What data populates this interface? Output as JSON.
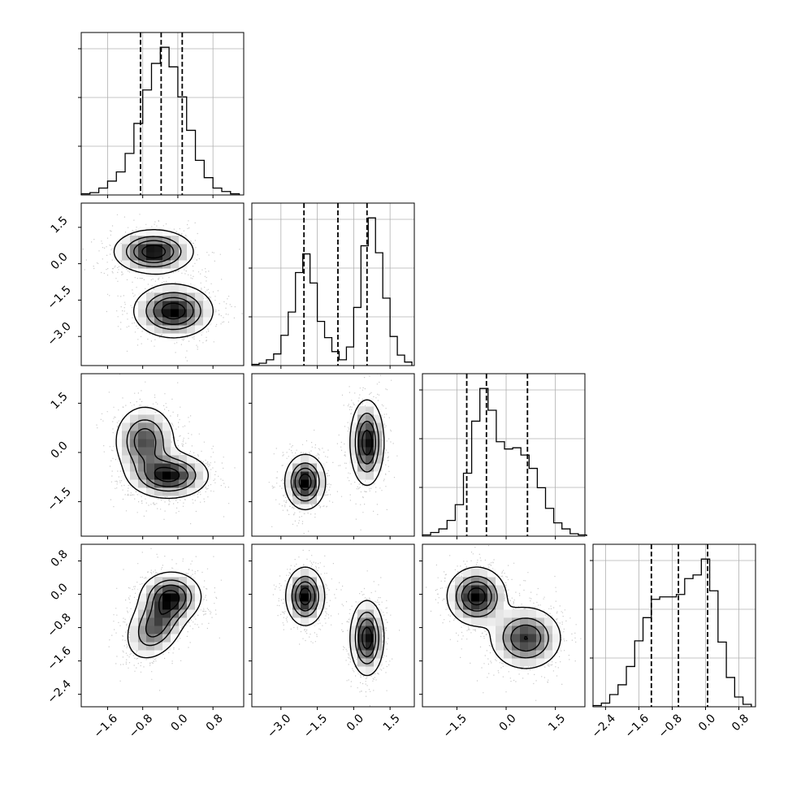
{
  "chart_data": {
    "type": "corner",
    "description_free": true,
    "parameters": 4,
    "grid": true,
    "quantile_style": "dashed",
    "axes": {
      "p0": {
        "range": [
          -2.2,
          1.5
        ],
        "ticks": [
          -1.6,
          -0.8,
          0.0,
          0.8
        ],
        "tick_labels": [
          "−1.6",
          "−0.8",
          "0.0",
          "0.8"
        ]
      },
      "p1": {
        "range": [
          -4.2,
          2.5
        ],
        "ticks": [
          -3.0,
          -1.5,
          0.0,
          1.5
        ],
        "tick_labels": [
          "−3.0",
          "−1.5",
          "0.0",
          "1.5"
        ]
      },
      "p2": {
        "range": [
          -2.55,
          2.4
        ],
        "ticks": [
          -1.5,
          0.0,
          1.5
        ],
        "tick_labels": [
          "−1.5",
          "0.0",
          "1.5"
        ]
      },
      "p3": {
        "range": [
          -2.7,
          1.2
        ],
        "ticks": [
          -2.4,
          -1.6,
          -0.8,
          0.0,
          0.8
        ],
        "tick_labels": [
          "−2.4",
          "−1.6",
          "−0.8",
          "0.0",
          "0.8"
        ]
      }
    },
    "histograms": [
      {
        "param": "p0",
        "bin_edges": [
          -2.2,
          -2.0,
          -1.8,
          -1.6,
          -1.4,
          -1.2,
          -1.0,
          -0.8,
          -0.6,
          -0.4,
          -0.2,
          0.0,
          0.2,
          0.4,
          0.6,
          0.8,
          1.0,
          1.2,
          1.4
        ],
        "counts": [
          1,
          2,
          6,
          12,
          20,
          36,
          62,
          91,
          114,
          128,
          111,
          85,
          56,
          30,
          15,
          6,
          3,
          1
        ],
        "quantiles": [
          -0.85,
          -0.38,
          0.1
        ]
      },
      {
        "param": "p1",
        "bin_edges": [
          -4.2,
          -3.9,
          -3.6,
          -3.3,
          -3.0,
          -2.7,
          -2.4,
          -2.1,
          -1.8,
          -1.5,
          -1.2,
          -0.9,
          -0.6,
          -0.3,
          0.0,
          0.3,
          0.6,
          0.9,
          1.2,
          1.5,
          1.8,
          2.1,
          2.4
        ],
        "counts": [
          1,
          2,
          5,
          10,
          26,
          46,
          80,
          96,
          71,
          38,
          24,
          12,
          5,
          16,
          50,
          103,
          127,
          97,
          58,
          25,
          9,
          3
        ],
        "quantiles": [
          -2.05,
          -0.65,
          0.55
        ]
      },
      {
        "param": "p2",
        "bin_edges": [
          -2.55,
          -2.3,
          -2.05,
          -1.8,
          -1.55,
          -1.3,
          -1.05,
          -0.8,
          -0.55,
          -0.3,
          -0.05,
          0.2,
          0.45,
          0.7,
          0.95,
          1.2,
          1.45,
          1.7,
          1.95,
          2.2,
          2.45
        ],
        "counts": [
          1,
          3,
          6,
          13,
          26,
          52,
          95,
          122,
          104,
          78,
          72,
          73,
          67,
          56,
          40,
          23,
          11,
          6,
          2,
          1
        ],
        "quantiles": [
          -1.2,
          -0.6,
          0.65
        ]
      },
      {
        "param": "p3",
        "bin_edges": [
          -2.7,
          -2.5,
          -2.3,
          -2.1,
          -1.9,
          -1.7,
          -1.5,
          -1.3,
          -1.1,
          -0.9,
          -0.7,
          -0.5,
          -0.3,
          -0.1,
          0.1,
          0.3,
          0.5,
          0.7,
          0.9,
          1.1
        ],
        "counts": [
          1,
          3,
          10,
          18,
          33,
          54,
          73,
          88,
          90,
          90,
          92,
          105,
          108,
          121,
          95,
          53,
          24,
          8,
          2
        ],
        "quantiles": [
          -1.3,
          -0.65,
          0.05
        ]
      }
    ],
    "density_panels": [
      {
        "x": "p0",
        "y": "p1",
        "clusters": [
          {
            "center": [
              -0.55,
              0.5
            ],
            "sigma": [
              0.45,
              0.45
            ],
            "rotation_deg": 0,
            "weight": 1.0
          },
          {
            "center": [
              -0.1,
              -1.95
            ],
            "sigma": [
              0.45,
              0.55
            ],
            "rotation_deg": 0,
            "weight": 1.0
          }
        ]
      },
      {
        "x": "p0",
        "y": "p2",
        "clusters": [
          {
            "center": [
              -0.75,
              0.35
            ],
            "sigma": [
              0.35,
              0.55
            ],
            "rotation_deg": 0,
            "weight": 0.8
          },
          {
            "center": [
              -0.2,
              -0.7
            ],
            "sigma": [
              0.45,
              0.35
            ],
            "rotation_deg": 0,
            "weight": 1.0
          }
        ]
      },
      {
        "x": "p1",
        "y": "p2",
        "clusters": [
          {
            "center": [
              -2.0,
              -0.9
            ],
            "sigma": [
              0.42,
              0.42
            ],
            "rotation_deg": 0,
            "weight": 1.0
          },
          {
            "center": [
              0.55,
              0.3
            ],
            "sigma": [
              0.35,
              0.65
            ],
            "rotation_deg": 0,
            "weight": 1.0
          }
        ]
      },
      {
        "x": "p0",
        "y": "p3",
        "clusters": [
          {
            "center": [
              -0.5,
              -0.75
            ],
            "sigma": [
              0.3,
              0.45
            ],
            "rotation_deg": -30,
            "weight": 0.8
          },
          {
            "center": [
              -0.15,
              -0.05
            ],
            "sigma": [
              0.35,
              0.3
            ],
            "rotation_deg": 0,
            "weight": 0.9
          }
        ]
      },
      {
        "x": "p1",
        "y": "p3",
        "clusters": [
          {
            "center": [
              -2.0,
              -0.05
            ],
            "sigma": [
              0.4,
              0.35
            ],
            "rotation_deg": 0,
            "weight": 1.0
          },
          {
            "center": [
              0.55,
              -1.05
            ],
            "sigma": [
              0.35,
              0.45
            ],
            "rotation_deg": 0,
            "weight": 1.0
          }
        ]
      },
      {
        "x": "p2",
        "y": "p3",
        "clusters": [
          {
            "center": [
              -0.9,
              -0.05
            ],
            "sigma": [
              0.45,
              0.35
            ],
            "rotation_deg": 0,
            "weight": 1.0
          },
          {
            "center": [
              0.6,
              -1.05
            ],
            "sigma": [
              0.55,
              0.38
            ],
            "rotation_deg": 0,
            "weight": 0.85
          }
        ]
      }
    ]
  }
}
